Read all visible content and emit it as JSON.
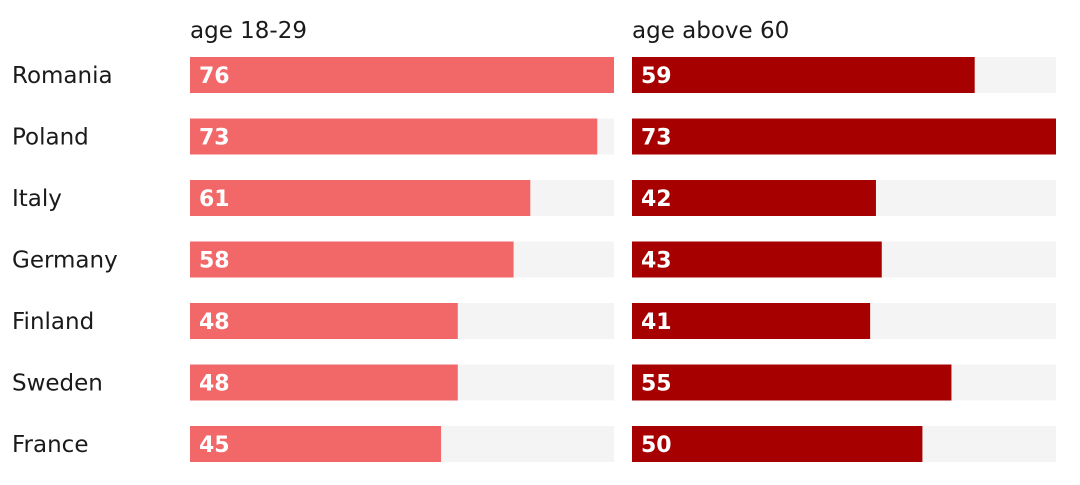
{
  "chart_data": {
    "type": "bar",
    "orientation": "horizontal",
    "layout": "small-multiples",
    "categories": [
      "Romania",
      "Poland",
      "Italy",
      "Germany",
      "Finland",
      "Sweden",
      "France"
    ],
    "series": [
      {
        "name": "age 18-29",
        "values": [
          76,
          73,
          61,
          58,
          48,
          48,
          45
        ],
        "color": "#f26868",
        "max": 76
      },
      {
        "name": "age above 60",
        "values": [
          59,
          73,
          42,
          43,
          41,
          55,
          50
        ],
        "color": "#a60000",
        "max": 73
      }
    ],
    "track_color": "#f4f4f4",
    "grid": false,
    "legend": "none"
  }
}
